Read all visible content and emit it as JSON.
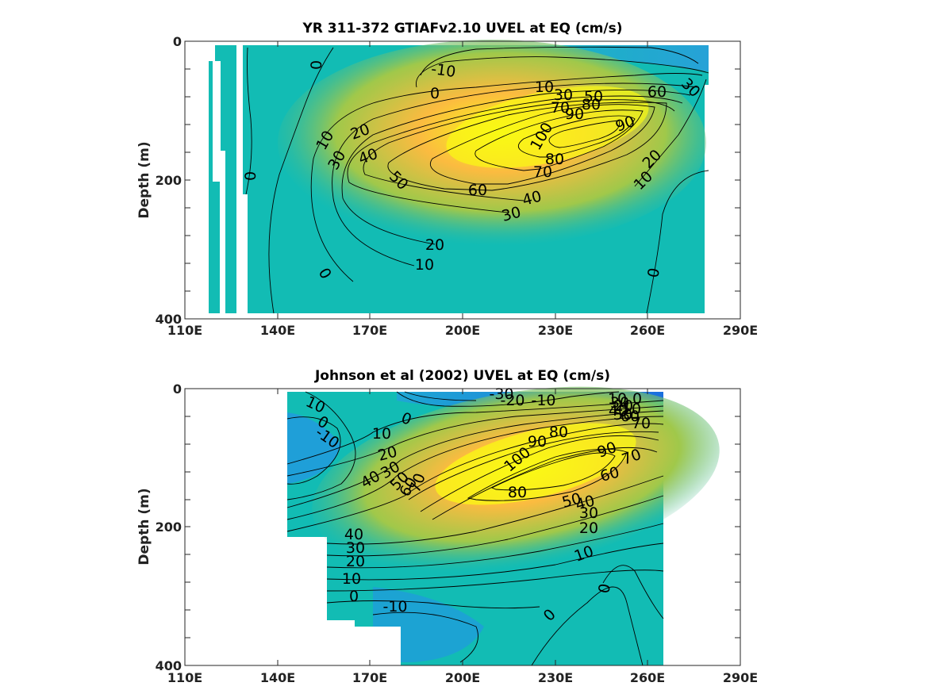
{
  "chart_data": [
    {
      "type": "heatmap",
      "title": "YR 311-372 GTIAFv2.10 UVEL at EQ (cm/s)",
      "xlabel": "",
      "ylabel": "Depth (m)",
      "xlim": [
        110,
        290
      ],
      "ylim": [
        0,
        400
      ],
      "y_reversed": true,
      "x_ticks": [
        "110E",
        "140E",
        "170E",
        "200E",
        "230E",
        "260E",
        "290E"
      ],
      "y_ticks": [
        "0",
        "200",
        "400"
      ],
      "colormap": "parula",
      "contour_labels": [
        "-10",
        "0",
        "0",
        "0",
        "0",
        "0",
        "10",
        "10",
        "10",
        "20",
        "20",
        "30",
        "30",
        "30",
        "40",
        "40",
        "50",
        "50",
        "60",
        "60",
        "70",
        "70",
        "80",
        "80",
        "90",
        "90",
        "100",
        "10",
        "20",
        "30"
      ]
    },
    {
      "type": "heatmap",
      "title": "Johnson et al (2002) UVEL at EQ (cm/s)",
      "xlabel": "",
      "ylabel": "Depth (m)",
      "xlim": [
        110,
        290
      ],
      "ylim": [
        0,
        400
      ],
      "y_reversed": true,
      "x_ticks": [
        "110E",
        "140E",
        "170E",
        "200E",
        "230E",
        "260E",
        "290E"
      ],
      "y_ticks": [
        "0",
        "200",
        "400"
      ],
      "colormap": "parula",
      "contour_labels": [
        "-30",
        "-20",
        "-10",
        "10",
        "0",
        "-10",
        "0",
        "10",
        "20",
        "30",
        "40",
        "50",
        "60",
        "70",
        "100",
        "90",
        "80",
        "90",
        "80",
        "70",
        "60",
        "50",
        "40",
        "30",
        "20",
        "10",
        "40",
        "30",
        "20",
        "10",
        "0",
        "-10",
        "0",
        "0",
        "10",
        "0",
        "40",
        "50",
        "60",
        "70",
        "30",
        "20",
        "10"
      ]
    }
  ],
  "colors": {
    "max": "#f9fa14",
    "high": "#fbbb40",
    "mid": "#a0c84a",
    "low": "#35b8a0",
    "zero": "#12bcb4",
    "neg": "#1f9fd8",
    "min": "#2f7fe6"
  }
}
